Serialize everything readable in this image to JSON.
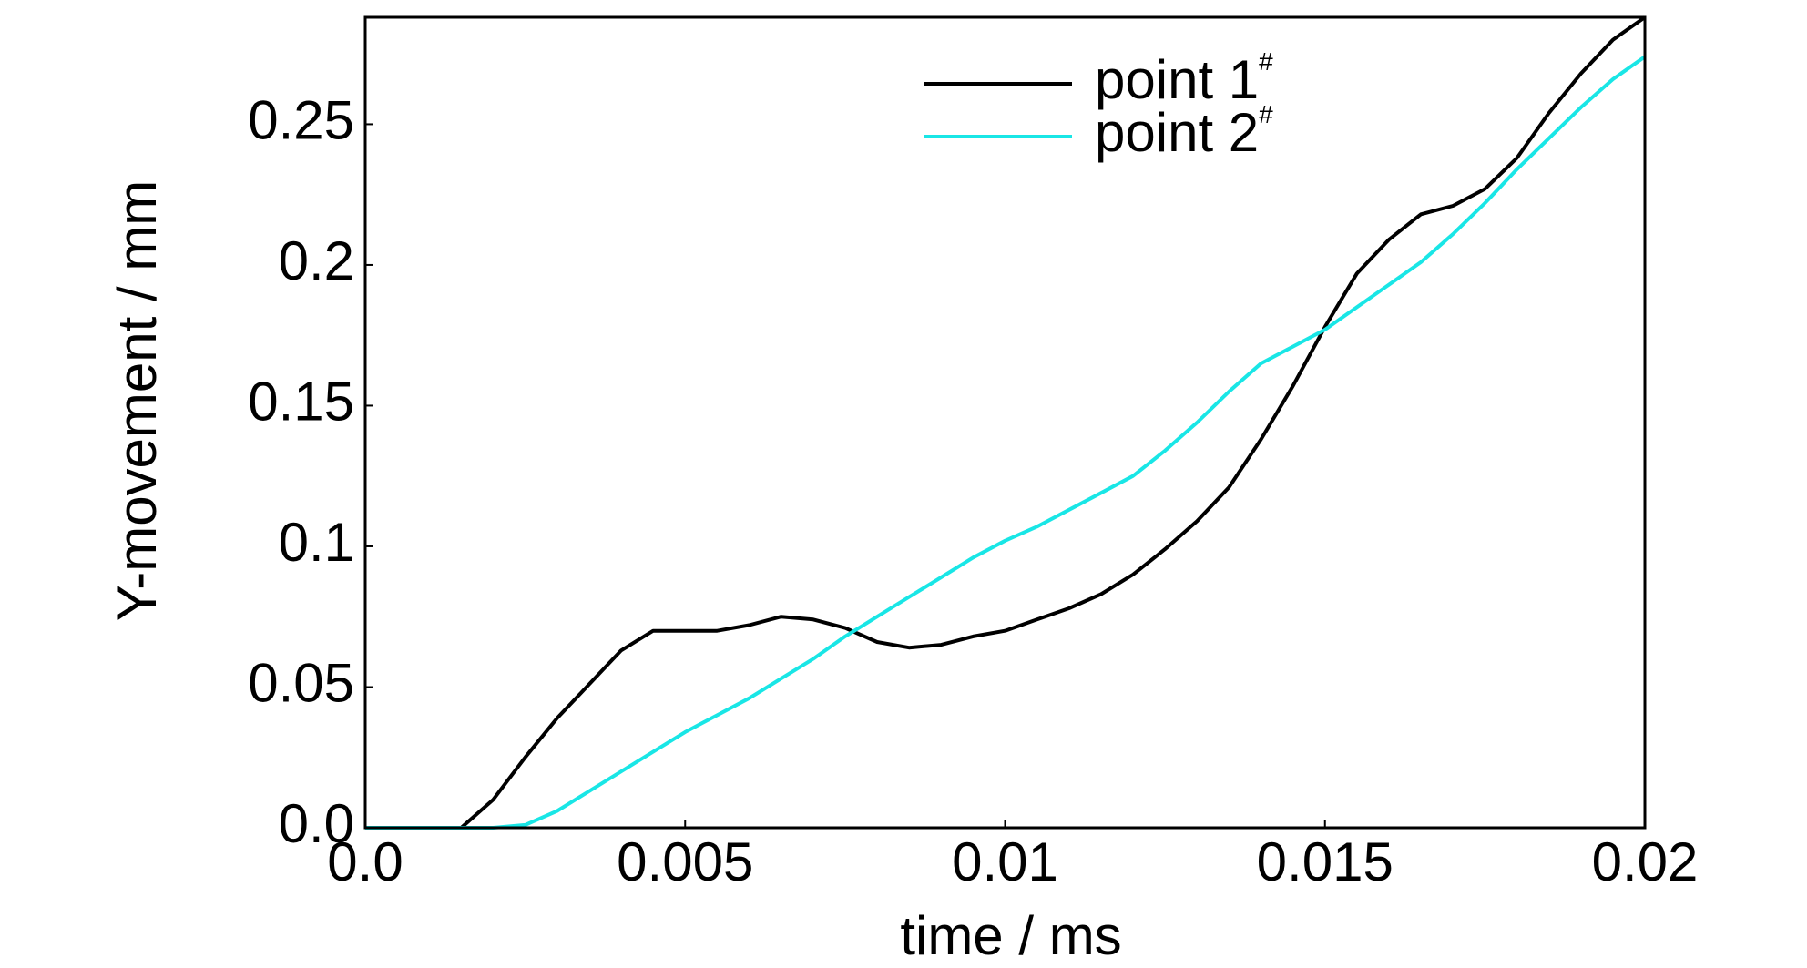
{
  "chart_data": {
    "type": "line",
    "x_label": "time / ms",
    "y_label": "Y-movement / mm",
    "x": [
      0,
      0.0015,
      0.002,
      0.0025,
      0.003,
      0.0035,
      0.004,
      0.0045,
      0.005,
      0.0055,
      0.006,
      0.0065,
      0.007,
      0.0075,
      0.008,
      0.0085,
      0.009,
      0.0095,
      0.01,
      0.0105,
      0.011,
      0.0115,
      0.012,
      0.0125,
      0.013,
      0.0135,
      0.014,
      0.0145,
      0.015,
      0.0155,
      0.016,
      0.0165,
      0.017,
      0.0175,
      0.018,
      0.0185,
      0.019,
      0.0195,
      0.02
    ],
    "series": [
      {
        "name": "point 1#",
        "color": "#000000",
        "values": [
          0,
          0,
          0.01,
          0.025,
          0.039,
          0.051,
          0.063,
          0.07,
          0.07,
          0.07,
          0.072,
          0.075,
          0.074,
          0.071,
          0.066,
          0.064,
          0.065,
          0.068,
          0.07,
          0.074,
          0.078,
          0.083,
          0.09,
          0.099,
          0.109,
          0.121,
          0.138,
          0.157,
          0.178,
          0.197,
          0.209,
          0.218,
          0.221,
          0.227,
          0.238,
          0.254,
          0.268,
          0.28,
          0.288
        ]
      },
      {
        "name": "point 2#",
        "color": "#19e6e6",
        "values": [
          0,
          0,
          0,
          0.001,
          0.006,
          0.013,
          0.02,
          0.027,
          0.034,
          0.04,
          0.046,
          0.053,
          0.06,
          0.068,
          0.075,
          0.082,
          0.089,
          0.096,
          0.102,
          0.107,
          0.113,
          0.119,
          0.125,
          0.134,
          0.144,
          0.155,
          0.165,
          0.171,
          0.177,
          0.185,
          0.193,
          0.201,
          0.211,
          0.222,
          0.234,
          0.245,
          0.256,
          0.266,
          0.274
        ]
      }
    ],
    "xlim": [
      0,
      0.02
    ],
    "xticks": [
      {
        "value": 0,
        "label": "0.0"
      },
      0.005,
      0.01,
      0.015,
      0.02
    ],
    "ylim": [
      0,
      0.288
    ],
    "yticks": [
      {
        "value": 0,
        "label": "0.0"
      },
      0.05,
      0.1,
      0.15,
      0.2,
      0.25
    ],
    "grid": false,
    "legend": "upper center"
  }
}
